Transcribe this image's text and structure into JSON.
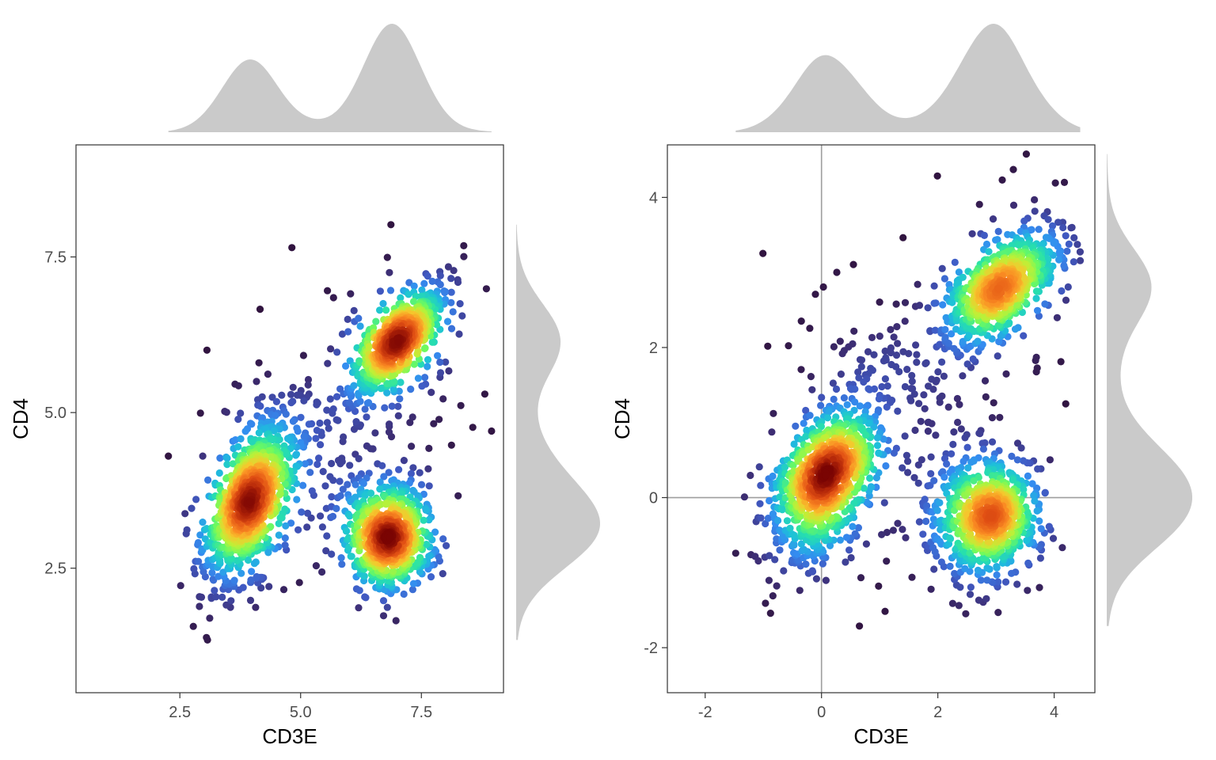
{
  "chart_data": [
    {
      "type": "scatter",
      "panel": "left",
      "xlabel": "CD3E",
      "ylabel": "CD4",
      "xlim": [
        0.35,
        9.2
      ],
      "ylim": [
        0.5,
        9.3
      ],
      "xticks": [
        2.5,
        5.0,
        7.5
      ],
      "xtick_labels": [
        "2.5",
        "5.0",
        "7.5"
      ],
      "yticks": [
        2.5,
        5.0,
        7.5
      ],
      "ytick_labels": [
        "2.5",
        "5.0",
        "7.5"
      ],
      "grid": false,
      "reference_lines": [],
      "color_scale": "point density (turbo: dark purple = low, dark red = high)",
      "clusters": [
        {
          "center": [
            3.95,
            3.6
          ],
          "sd": [
            0.45,
            0.65
          ],
          "rho": 0.55,
          "n": 900
        },
        {
          "center": [
            6.85,
            3.0
          ],
          "sd": [
            0.45,
            0.42
          ],
          "rho": 0.05,
          "n": 700
        },
        {
          "center": [
            7.0,
            6.15
          ],
          "sd": [
            0.45,
            0.42
          ],
          "rho": 0.75,
          "n": 650
        },
        {
          "center": [
            5.7,
            4.6
          ],
          "sd": [
            1.3,
            1.1
          ],
          "rho": 0.3,
          "n": 280
        }
      ],
      "marginal_top": {
        "peaks_x": [
          3.9,
          6.85
        ],
        "relative_heights": [
          0.6,
          1.0
        ]
      },
      "marginal_right": {
        "peaks_y": [
          3.0,
          6.15
        ],
        "relative_heights": [
          1.0,
          0.75
        ]
      }
    },
    {
      "type": "scatter",
      "panel": "right",
      "xlabel": "CD3E",
      "ylabel": "CD4",
      "xlim": [
        -2.65,
        4.7
      ],
      "ylim": [
        -2.6,
        4.7
      ],
      "xticks": [
        -2,
        0,
        2,
        4
      ],
      "xtick_labels": [
        "-2",
        "0",
        "2",
        "4"
      ],
      "yticks": [
        -2,
        0,
        2,
        4
      ],
      "ytick_labels": [
        "-2",
        "0",
        "2",
        "4"
      ],
      "grid": false,
      "reference_lines": [
        {
          "axis": "x",
          "value": 0
        },
        {
          "axis": "y",
          "value": 0
        }
      ],
      "color_scale": "point density (turbo: dark purple = low, dark red = high)",
      "clusters": [
        {
          "center": [
            0.05,
            0.25
          ],
          "sd": [
            0.45,
            0.55
          ],
          "rho": 0.5,
          "n": 900
        },
        {
          "center": [
            2.85,
            -0.3
          ],
          "sd": [
            0.45,
            0.4
          ],
          "rho": 0.05,
          "n": 700
        },
        {
          "center": [
            3.1,
            2.85
          ],
          "sd": [
            0.5,
            0.38
          ],
          "rho": 0.6,
          "n": 650
        },
        {
          "center": [
            1.6,
            1.2
          ],
          "sd": [
            1.1,
            1.1
          ],
          "rho": 0.3,
          "n": 280
        }
      ],
      "marginal_top": {
        "peaks_x": [
          0.0,
          2.95
        ],
        "relative_heights": [
          0.73,
          1.0
        ]
      },
      "marginal_right": {
        "peaks_y": [
          -0.05,
          3.05
        ],
        "relative_heights": [
          1.0,
          0.6
        ]
      }
    }
  ]
}
